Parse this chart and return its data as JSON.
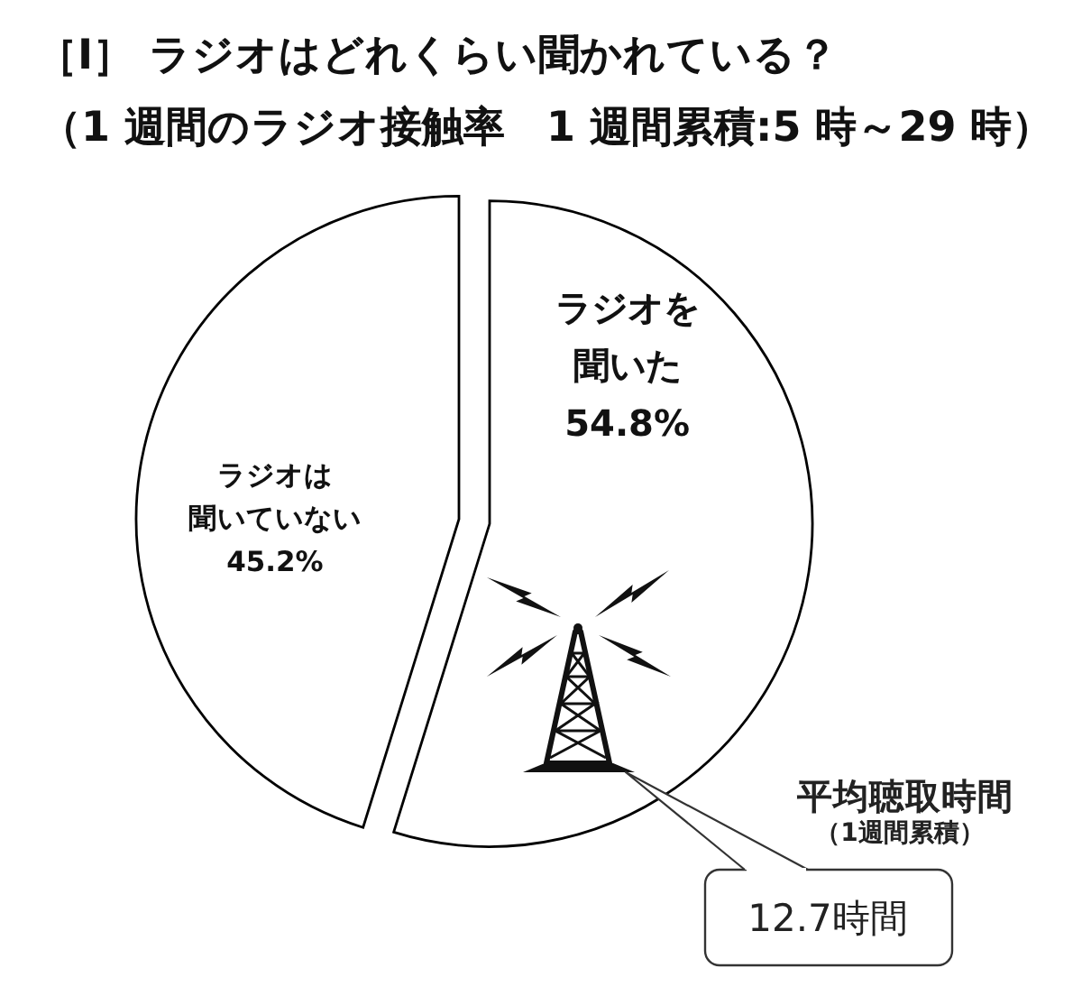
{
  "chart_data": {
    "type": "pie",
    "title": "［Ⅰ］ ラジオはどれくらい聞かれている？",
    "subtitle": "（1 週間のラジオ接触率　1 週間累積:5 時～29 時）",
    "categories": [
      "ラジオを聞いた",
      "ラジオは聞いていない"
    ],
    "values": [
      54.8,
      45.2
    ],
    "colors": [
      "#ffffff",
      "#ffffff"
    ],
    "value_labels": [
      "54.8%",
      "45.2%"
    ],
    "annotations": [
      "平均聴取時間",
      "（1週間累積）",
      "12.7時間"
    ]
  }
}
